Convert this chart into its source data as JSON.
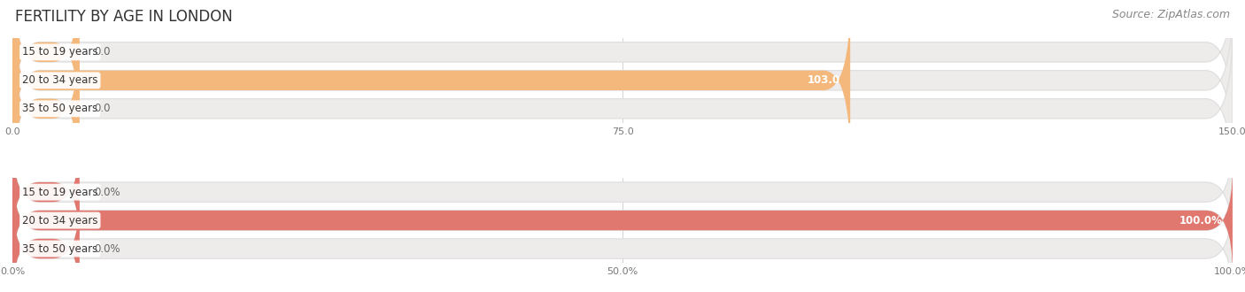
{
  "title": "FERTILITY BY AGE IN LONDON",
  "source": "Source: ZipAtlas.com",
  "top_chart": {
    "categories": [
      "15 to 19 years",
      "20 to 34 years",
      "35 to 50 years"
    ],
    "values": [
      0.0,
      103.0,
      0.0
    ],
    "max_value": 150.0,
    "tick_values": [
      0.0,
      75.0,
      150.0
    ],
    "tick_labels": [
      "0.0",
      "75.0",
      "150.0"
    ],
    "bar_color": "#F5B87C",
    "bar_bg_color": "#EEEBEB"
  },
  "bottom_chart": {
    "categories": [
      "15 to 19 years",
      "20 to 34 years",
      "35 to 50 years"
    ],
    "values": [
      0.0,
      100.0,
      0.0
    ],
    "max_value": 100.0,
    "tick_values": [
      0.0,
      50.0,
      100.0
    ],
    "tick_labels": [
      "0.0%",
      "50.0%",
      "100.0%"
    ],
    "bar_color": "#E07870",
    "bar_bg_color": "#EEEBEB"
  },
  "title_fontsize": 12,
  "source_fontsize": 9,
  "label_fontsize": 8.5,
  "tick_fontsize": 8,
  "background_color": "#FFFFFF"
}
